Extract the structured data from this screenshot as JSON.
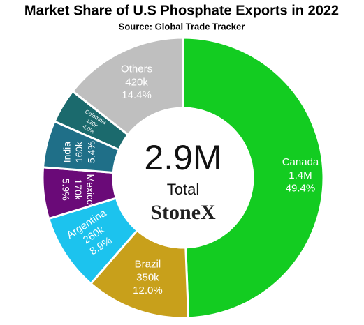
{
  "chart_data": {
    "type": "donut",
    "title": "Market Share of U.S Phosphate Exports in 2022",
    "subtitle": "Source: Global Trade Tracker",
    "categories": [
      "Canada",
      "Brazil",
      "Argentina",
      "Mexico",
      "India",
      "Colombia",
      "Others"
    ],
    "values": [
      49.4,
      12.0,
      8.9,
      5.9,
      5.4,
      4.0,
      14.4
    ],
    "value_labels": [
      "49.4%",
      "12.0%",
      "8.9%",
      "5.9%",
      "5.4%",
      "4.0%",
      "14.4%"
    ],
    "amount_labels": [
      "1.4M",
      "350k",
      "260k",
      "170k",
      "160k",
      "120k",
      "420k"
    ],
    "colors": [
      "#13cc21",
      "#c8a01b",
      "#1cc3ee",
      "#6a0a78",
      "#1f6f88",
      "#1b6a6d",
      "#bfbfbf"
    ],
    "total_label": "2.9M",
    "total_caption": "Total",
    "brand": "StoneX"
  }
}
